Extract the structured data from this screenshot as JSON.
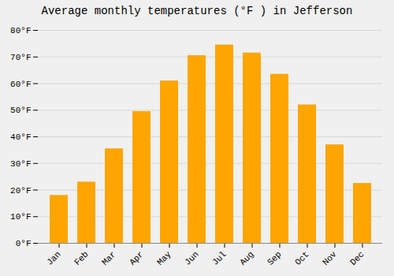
{
  "chart_data": {
    "type": "bar",
    "title": "Average monthly temperatures (°F ) in Jefferson",
    "categories": [
      "Jan",
      "Feb",
      "Mar",
      "Apr",
      "May",
      "Jun",
      "Jul",
      "Aug",
      "Sep",
      "Oct",
      "Nov",
      "Dec"
    ],
    "values": [
      18,
      23,
      35.5,
      49.5,
      61,
      70.5,
      74.5,
      71.5,
      63.5,
      52,
      37,
      22.5
    ],
    "color": "#FFA500",
    "ylim": [
      0,
      80
    ],
    "yticks": [
      {
        "value": 0,
        "label": "0°F"
      },
      {
        "value": 10,
        "label": "10°F"
      },
      {
        "value": 20,
        "label": "20°F"
      },
      {
        "value": 30,
        "label": "30°F"
      },
      {
        "value": 40,
        "label": "40°F"
      },
      {
        "value": 50,
        "label": "50°F"
      },
      {
        "value": 60,
        "label": "60°F"
      },
      {
        "value": 70,
        "label": "70°F"
      },
      {
        "value": 80,
        "label": "80°F"
      }
    ],
    "grid": true
  }
}
